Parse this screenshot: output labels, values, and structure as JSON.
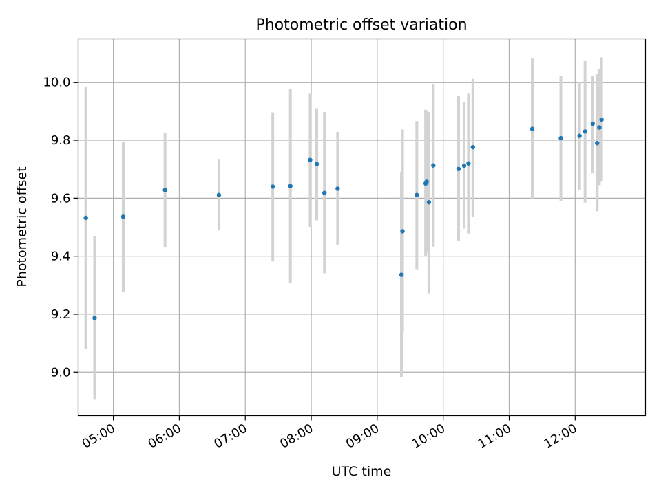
{
  "chart_data": {
    "type": "scatter",
    "title": "Photometric offset variation",
    "xlabel": "UTC time",
    "ylabel": "Photometric offset",
    "x_ticks": [
      "05:00",
      "06:00",
      "07:00",
      "08:00",
      "09:00",
      "10:00",
      "11:00",
      "12:00"
    ],
    "y_ticks": [
      "9.0",
      "9.2",
      "9.4",
      "9.6",
      "9.8",
      "10.0"
    ],
    "xlim": [
      "04:28",
      "13:04"
    ],
    "ylim": [
      8.85,
      10.15
    ],
    "grid": true,
    "colors": {
      "point": "#1f77b4",
      "errorbar": "#d3d3d3",
      "grid": "#b0b0b0"
    },
    "points": [
      {
        "x": "04:35",
        "y": 9.532,
        "ylow": 9.08,
        "yhigh": 9.985
      },
      {
        "x": "04:43",
        "y": 9.187,
        "ylow": 8.905,
        "yhigh": 9.47
      },
      {
        "x": "05:09",
        "y": 9.536,
        "ylow": 9.278,
        "yhigh": 9.795
      },
      {
        "x": "05:47",
        "y": 9.628,
        "ylow": 9.432,
        "yhigh": 9.826
      },
      {
        "x": "06:36",
        "y": 9.611,
        "ylow": 9.491,
        "yhigh": 9.733
      },
      {
        "x": "07:25",
        "y": 9.64,
        "ylow": 9.382,
        "yhigh": 9.896
      },
      {
        "x": "07:41",
        "y": 9.642,
        "ylow": 9.308,
        "yhigh": 9.977
      },
      {
        "x": "07:59",
        "y": 9.732,
        "ylow": 9.501,
        "yhigh": 9.963
      },
      {
        "x": "08:05",
        "y": 9.718,
        "ylow": 9.524,
        "yhigh": 9.91
      },
      {
        "x": "08:12",
        "y": 9.618,
        "ylow": 9.341,
        "yhigh": 9.897
      },
      {
        "x": "08:24",
        "y": 9.633,
        "ylow": 9.439,
        "yhigh": 9.829
      },
      {
        "x": "09:22",
        "y": 9.336,
        "ylow": 8.983,
        "yhigh": 9.69
      },
      {
        "x": "09:23",
        "y": 9.486,
        "ylow": 9.135,
        "yhigh": 9.837
      },
      {
        "x": "09:36",
        "y": 9.611,
        "ylow": 9.355,
        "yhigh": 9.866
      },
      {
        "x": "09:44",
        "y": 9.651,
        "ylow": 9.4,
        "yhigh": 9.905
      },
      {
        "x": "09:45",
        "y": 9.657,
        "ylow": 9.412,
        "yhigh": 9.901
      },
      {
        "x": "09:47",
        "y": 9.586,
        "ylow": 9.272,
        "yhigh": 9.897
      },
      {
        "x": "09:51",
        "y": 9.713,
        "ylow": 9.433,
        "yhigh": 9.995
      },
      {
        "x": "10:14",
        "y": 9.701,
        "ylow": 9.452,
        "yhigh": 9.953
      },
      {
        "x": "10:19",
        "y": 9.712,
        "ylow": 9.495,
        "yhigh": 9.933
      },
      {
        "x": "10:23",
        "y": 9.72,
        "ylow": 9.478,
        "yhigh": 9.963
      },
      {
        "x": "10:27",
        "y": 9.776,
        "ylow": 9.535,
        "yhigh": 10.012
      },
      {
        "x": "11:21",
        "y": 9.839,
        "ylow": 9.597,
        "yhigh": 10.082
      },
      {
        "x": "11:47",
        "y": 9.807,
        "ylow": 9.589,
        "yhigh": 10.023
      },
      {
        "x": "12:04",
        "y": 9.815,
        "ylow": 9.628,
        "yhigh": 10.001
      },
      {
        "x": "12:09",
        "y": 9.83,
        "ylow": 9.585,
        "yhigh": 10.075
      },
      {
        "x": "12:16",
        "y": 9.857,
        "ylow": 9.686,
        "yhigh": 10.023
      },
      {
        "x": "12:20",
        "y": 9.79,
        "ylow": 9.555,
        "yhigh": 10.03
      },
      {
        "x": "12:22",
        "y": 9.844,
        "ylow": 9.645,
        "yhigh": 10.045
      },
      {
        "x": "12:24",
        "y": 9.871,
        "ylow": 9.657,
        "yhigh": 10.086
      }
    ]
  }
}
